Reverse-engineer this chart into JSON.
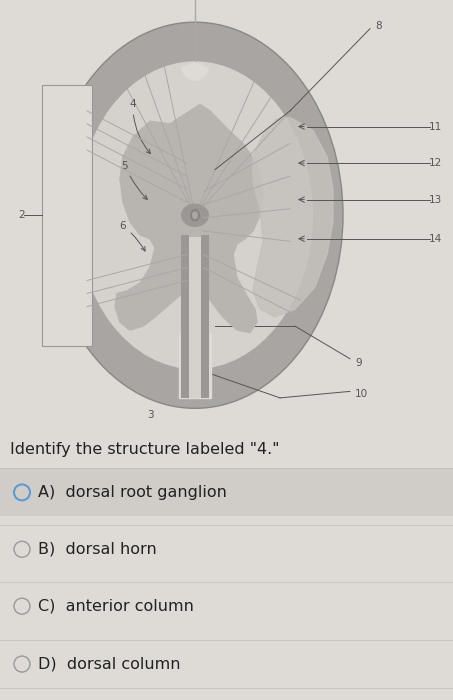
{
  "bg_color": "#dedad6",
  "question": "Identify the structure labeled \"4.\"",
  "options": [
    {
      "label": "A)",
      "text": "dorsal root ganglion",
      "selected": true
    },
    {
      "label": "B)",
      "text": "dorsal horn",
      "selected": false
    },
    {
      "label": "C)",
      "text": "anterior column",
      "selected": false
    },
    {
      "label": "D)",
      "text": "dorsal column",
      "selected": false
    }
  ],
  "option_bg_selected": "#d0cdc9",
  "option_bg_normal": "#dedad6",
  "selected_circle_color": "#5b9bd5",
  "unselected_circle_color": "#999999",
  "text_color": "#222222",
  "question_fontsize": 11.5,
  "option_fontsize": 11.5,
  "lfs": 7.5,
  "lc": "#555555",
  "gray_outer": "#a8a5a2",
  "gray_ring": "#c0bdb9",
  "gray_white_matter": "#d5d2ce",
  "gray_matter": "#b8b5b1",
  "gray_matter_dark": "#9a9795",
  "gray_ganglion": "#c5c2be"
}
